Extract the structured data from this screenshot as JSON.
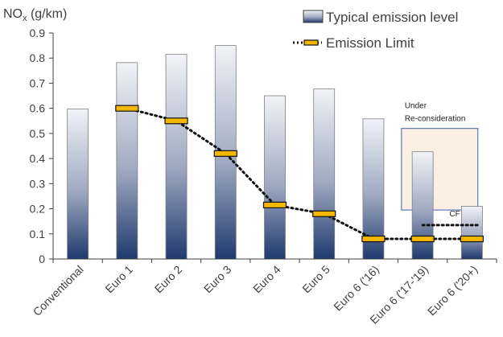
{
  "chart_data": {
    "type": "bar",
    "categories": [
      "Conventional",
      "Euro 1",
      "Euro 2",
      "Euro 3",
      "Euro 4",
      "Euro 5",
      "Euro 6 ('16)",
      "Euro 6 ('17-'19)",
      "Euro 6 ('20+)"
    ],
    "series": [
      {
        "name": "Typical emission level",
        "values": [
          0.597,
          0.782,
          0.815,
          0.85,
          0.65,
          0.677,
          0.558,
          0.427,
          0.21
        ]
      },
      {
        "name": "Emission Limit",
        "values": [
          null,
          0.6,
          0.55,
          0.42,
          0.215,
          0.18,
          0.08,
          0.08,
          0.08
        ]
      }
    ],
    "cf_line": {
      "label": "CF",
      "values": [
        null,
        null,
        null,
        null,
        null,
        null,
        null,
        0.135,
        0.135
      ]
    },
    "annotation": {
      "line1": "Under",
      "line2": "Re-consideration"
    },
    "ylabel_main": "NO",
    "ylabel_sub": "x",
    "ylabel_unit": " (g/km)",
    "ylim": [
      0,
      0.9
    ],
    "yticks": [
      "0",
      "0.1",
      "0.2",
      "0.3",
      "0.4",
      "0.5",
      "0.6",
      "0.7",
      "0.8",
      "0.9"
    ],
    "legend_position": "top-right",
    "grid": false,
    "colors": {
      "bar_top": "#f1f3f7",
      "bar_bottom": "#1f3a6e",
      "limit_marker": "#f5b800",
      "box_fill": "#fbeee3",
      "box_stroke": "#5a7ab8",
      "axis": "#404040"
    }
  }
}
